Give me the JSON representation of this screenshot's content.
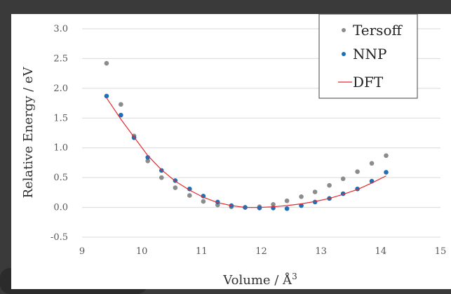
{
  "chart_data": {
    "type": "scatter",
    "title": "",
    "xlabel": "Volume / Å",
    "xlabel_superscript": "3",
    "ylabel": "Relative Energy / eV",
    "xlim": [
      9,
      15
    ],
    "ylim": [
      -0.5,
      3.0
    ],
    "xticks": [
      "9",
      "10",
      "11",
      "12",
      "13",
      "14",
      "15"
    ],
    "yticks": [
      "-0.5",
      "0.0",
      "0.5",
      "1.0",
      "1.5",
      "2.0",
      "2.5",
      "3.0"
    ],
    "grid": "horizontal",
    "legend_position": "top-right",
    "series": [
      {
        "name": "Tersoff",
        "kind": "points",
        "color": "#8c8c8c",
        "x": [
          9.41,
          9.65,
          9.87,
          10.1,
          10.33,
          10.56,
          10.8,
          11.03,
          11.27,
          11.5,
          11.73,
          11.97,
          12.2,
          12.43,
          12.67,
          12.9,
          13.14,
          13.37,
          13.61,
          13.85,
          14.09
        ],
        "y": [
          2.42,
          1.73,
          1.2,
          0.78,
          0.5,
          0.33,
          0.2,
          0.1,
          0.04,
          0.01,
          0.0,
          0.01,
          0.05,
          0.11,
          0.18,
          0.26,
          0.37,
          0.48,
          0.6,
          0.74,
          0.87
        ]
      },
      {
        "name": "NNP",
        "kind": "points",
        "color": "#1f6fb5",
        "x": [
          9.41,
          9.65,
          9.87,
          10.1,
          10.33,
          10.56,
          10.8,
          11.03,
          11.27,
          11.5,
          11.73,
          11.97,
          12.2,
          12.43,
          12.67,
          12.9,
          13.14,
          13.37,
          13.61,
          13.85,
          14.09
        ],
        "y": [
          1.87,
          1.55,
          1.17,
          0.84,
          0.62,
          0.45,
          0.31,
          0.19,
          0.09,
          0.03,
          0.0,
          -0.01,
          -0.01,
          -0.02,
          0.03,
          0.09,
          0.15,
          0.23,
          0.31,
          0.44,
          0.59
        ]
      },
      {
        "name": "DFT",
        "kind": "line",
        "color": "#e8292e",
        "x": [
          9.41,
          9.65,
          9.87,
          10.1,
          10.33,
          10.56,
          10.8,
          11.03,
          11.27,
          11.5,
          11.73,
          11.97,
          12.2,
          12.43,
          12.67,
          12.9,
          13.14,
          13.37,
          13.61,
          13.85,
          14.09
        ],
        "y": [
          1.84,
          1.48,
          1.18,
          0.87,
          0.63,
          0.44,
          0.29,
          0.17,
          0.08,
          0.03,
          0.0,
          0.0,
          0.01,
          0.03,
          0.06,
          0.1,
          0.15,
          0.22,
          0.3,
          0.41,
          0.53
        ]
      }
    ]
  }
}
